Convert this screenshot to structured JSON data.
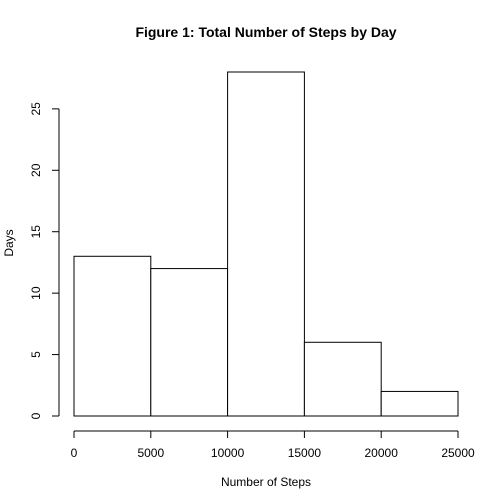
{
  "chart_data": {
    "type": "bar",
    "title": "Figure 1: Total Number of Steps by Day",
    "xlabel": "Number of Steps",
    "ylabel": "Days",
    "bins": [
      {
        "from": 0,
        "to": 5000,
        "count": 13
      },
      {
        "from": 5000,
        "to": 10000,
        "count": 12
      },
      {
        "from": 10000,
        "to": 15000,
        "count": 28
      },
      {
        "from": 15000,
        "to": 20000,
        "count": 6
      },
      {
        "from": 20000,
        "to": 25000,
        "count": 2
      }
    ],
    "xlim": [
      0,
      25000
    ],
    "ylim": [
      0,
      28
    ],
    "x_ticks": [
      0,
      5000,
      10000,
      15000,
      20000,
      25000
    ],
    "x_tick_labels": [
      "0",
      "5000",
      "10000",
      "15000",
      "20000",
      "25000"
    ],
    "y_ticks": [
      0,
      5,
      10,
      15,
      20,
      25
    ],
    "y_tick_labels": [
      "0",
      "5",
      "10",
      "15",
      "20",
      "25"
    ],
    "grid": false,
    "legend": "none"
  }
}
